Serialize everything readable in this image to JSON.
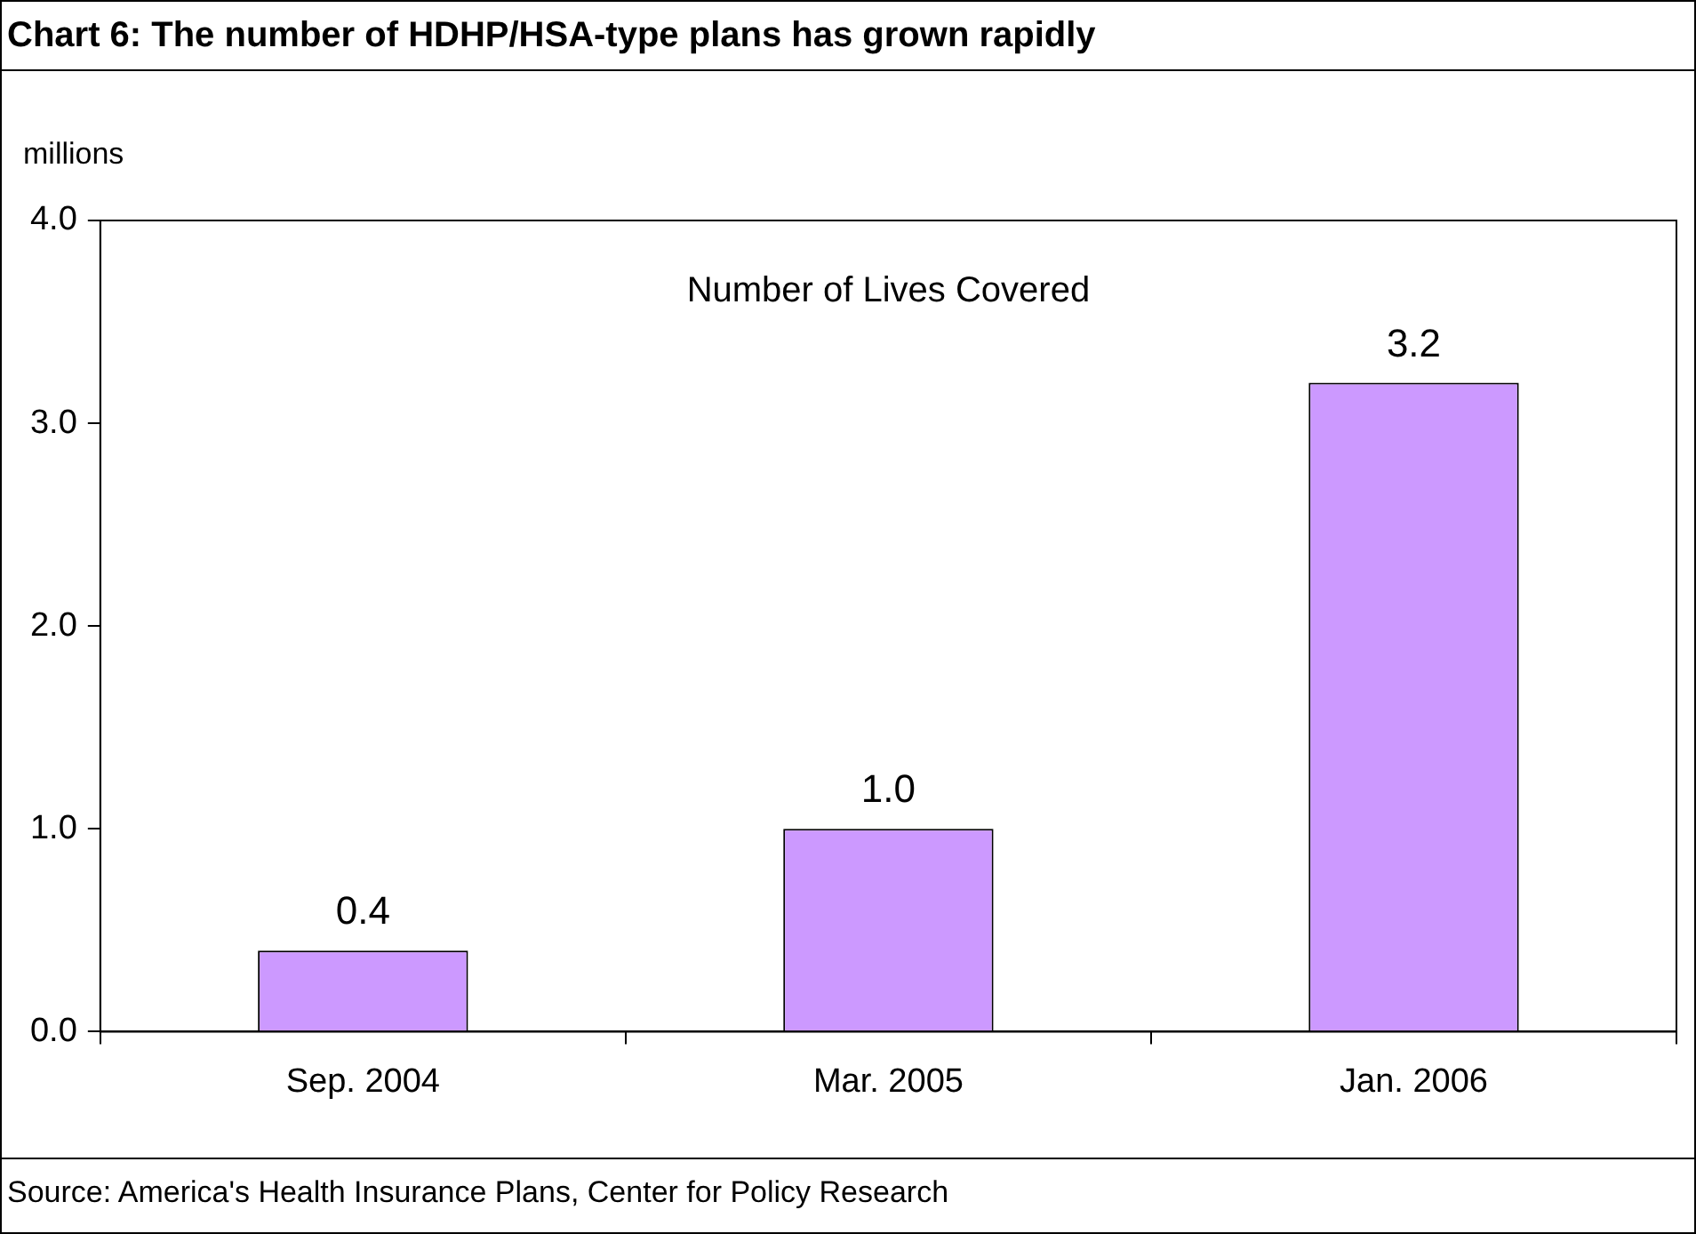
{
  "chart_data": {
    "type": "bar",
    "title": "Chart 6:  The number of HDHP/HSA-type plans has grown rapidly",
    "ylabel": "millions",
    "categories": [
      "Sep. 2004",
      "Mar. 2005",
      "Jan. 2006"
    ],
    "values": [
      0.4,
      1.0,
      3.2
    ],
    "color": "#cc99ff",
    "ylim": [
      0,
      4
    ],
    "yticks": [
      {
        "value": 0,
        "label": "0.0"
      },
      {
        "value": 1,
        "label": "1.0"
      },
      {
        "value": 2,
        "label": "2.0"
      },
      {
        "value": 3,
        "label": "3.0"
      },
      {
        "value": 4,
        "label": "4.0"
      }
    ],
    "value_labels": [
      "0.4",
      "1.0",
      "3.2"
    ],
    "annotations": [
      "Number of Lives Covered",
      "Source: America's Health Insurance Plans, Center for Policy Research"
    ],
    "grid": false,
    "legend": false
  }
}
